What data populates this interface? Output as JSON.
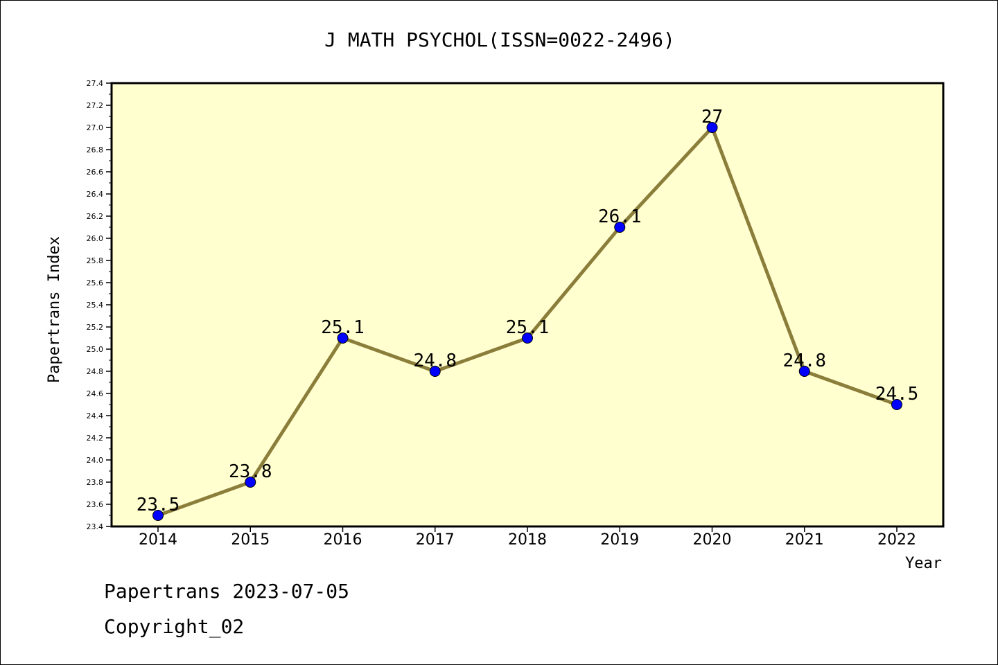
{
  "chart_data": {
    "type": "line",
    "title": "J MATH PSYCHOL(ISSN=0022-2496)",
    "xlabel": "Year",
    "ylabel": "Papertrans Index",
    "categories": [
      "2014",
      "2015",
      "2016",
      "2017",
      "2018",
      "2019",
      "2020",
      "2021",
      "2022"
    ],
    "values": [
      23.5,
      23.8,
      25.1,
      24.8,
      25.1,
      26.1,
      27.0,
      24.8,
      24.5
    ],
    "data_labels": [
      "23.5",
      "23.8",
      "25.1",
      "24.8",
      "25.1",
      "26.1",
      "27",
      "24.8",
      "24.5"
    ],
    "ylim": [
      23.4,
      27.4
    ],
    "yticks": [
      "23.4",
      "23.6",
      "23.8",
      "24.0",
      "24.2",
      "24.4",
      "24.6",
      "24.8",
      "25.0",
      "25.2",
      "25.4",
      "25.6",
      "25.8",
      "26.0",
      "26.2",
      "26.4",
      "26.6",
      "26.8",
      "27.0",
      "27.2",
      "27.4"
    ],
    "grid": false,
    "colors": {
      "plot_background": "#ffffd0",
      "line": "#8b7d3a",
      "marker": "#0000ff"
    }
  },
  "footer": {
    "line1": "Papertrans 2023-07-05",
    "line2": "Copyright_02"
  }
}
